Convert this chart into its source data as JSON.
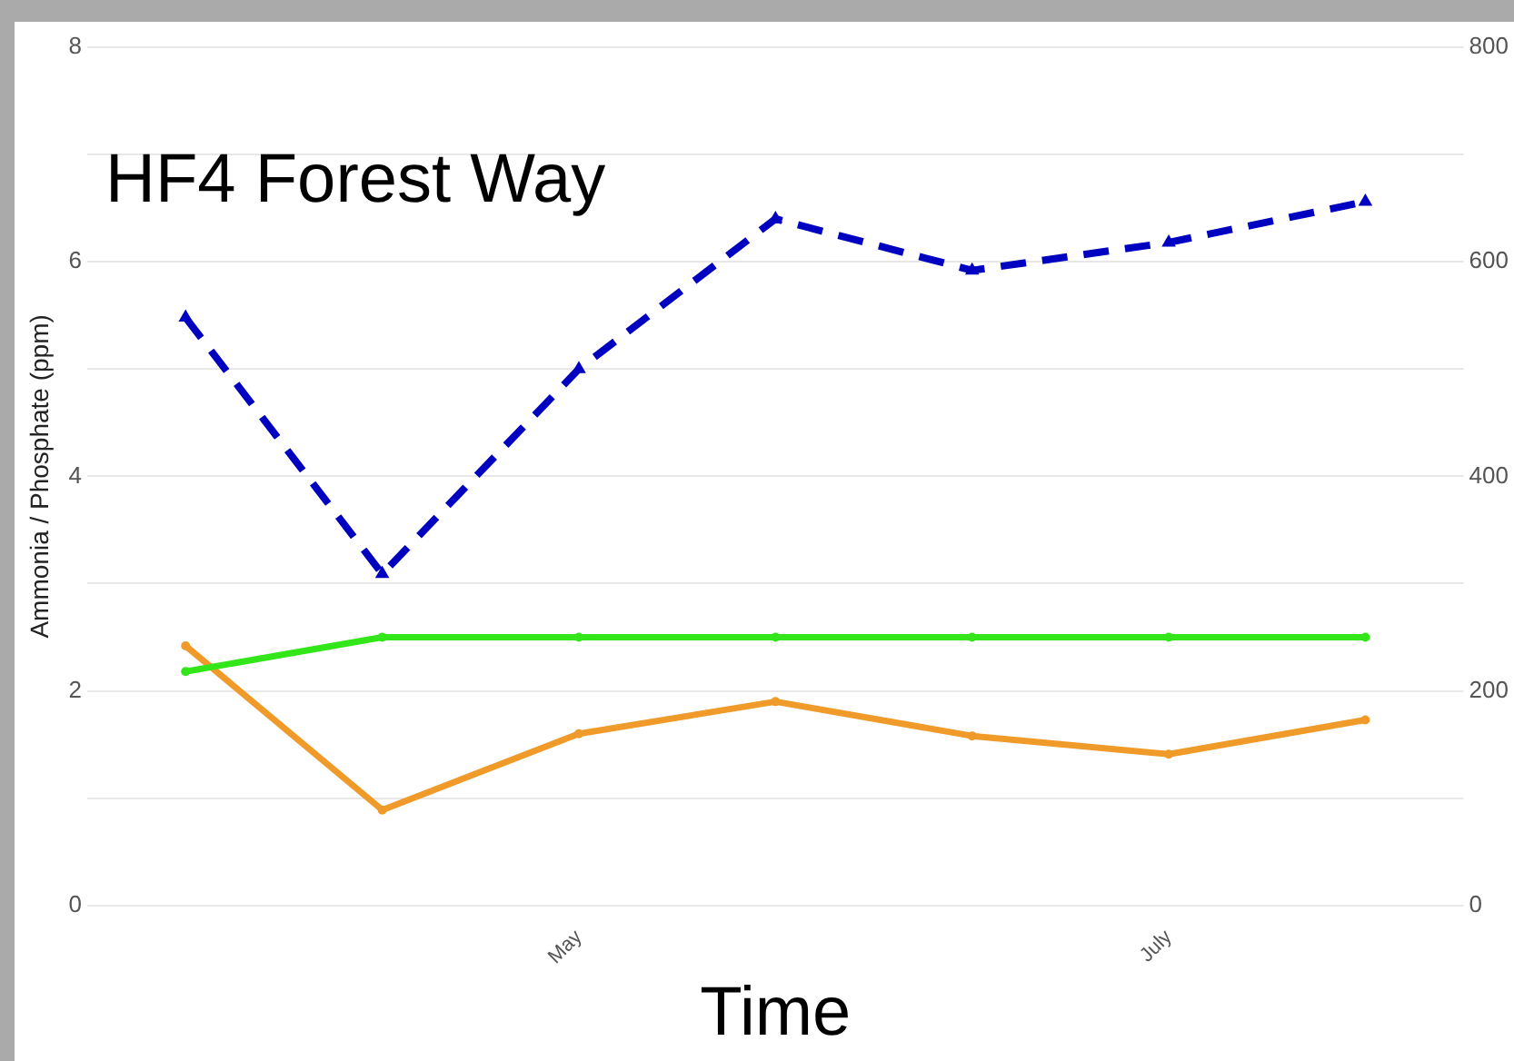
{
  "chart_data": {
    "type": "line",
    "title": "HF4 Forest Way",
    "xlabel": "Time",
    "ylabel": "Ammonia / Phosphate (ppm)",
    "categories": [
      null,
      null,
      "May",
      null,
      null,
      "July",
      null
    ],
    "series": [
      {
        "color": "#0000c0",
        "axis": "y2",
        "line_style": "dashed",
        "marker": "triangle",
        "values": [
          548,
          309,
          500,
          640,
          592,
          618,
          656
        ]
      },
      {
        "color": "#33e61a",
        "values": [
          2.18,
          2.5,
          2.5,
          2.5,
          2.5,
          2.5,
          2.5
        ]
      },
      {
        "color": "#f09a2a",
        "values": [
          2.42,
          0.89,
          1.6,
          1.9,
          1.58,
          1.41,
          1.73
        ]
      }
    ],
    "ylim": [
      0,
      8
    ],
    "yticks": [
      0,
      {
        "value": 1,
        "label": null
      },
      2,
      {
        "value": 3,
        "label": null
      },
      4,
      {
        "value": 5,
        "label": null
      },
      6,
      {
        "value": 7,
        "label": null
      },
      8
    ],
    "y2lim": [
      0,
      800
    ],
    "y2ticks": [
      0,
      200,
      400,
      600,
      800
    ],
    "grid": "y",
    "legend": false,
    "marker": "circle",
    "line_style": "solid"
  }
}
